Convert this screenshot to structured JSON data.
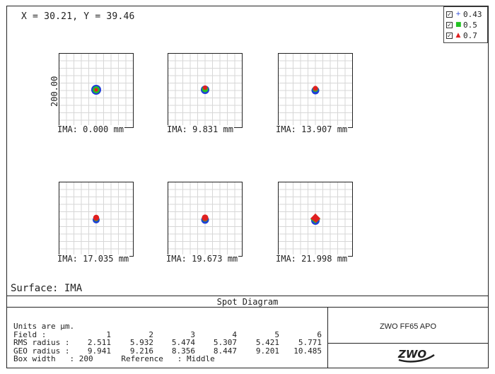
{
  "cursor": {
    "text": "X = 30.21, Y = 39.46"
  },
  "legend": {
    "items": [
      {
        "value": "0.43",
        "color": "#1f3fd6",
        "symbol": "+",
        "checked": true
      },
      {
        "value": "0.5",
        "color": "#22c322",
        "symbol": "■",
        "checked": true
      },
      {
        "value": "0.7",
        "color": "#e02020",
        "symbol": "▲",
        "checked": true
      }
    ]
  },
  "scale_label": "200.00",
  "fields": [
    {
      "label": "IMA: 0.000 mm"
    },
    {
      "label": "IMA: 9.831 mm"
    },
    {
      "label": "IMA: 13.907 mm"
    },
    {
      "label": "IMA: 17.035 mm"
    },
    {
      "label": "IMA: 19.673 mm"
    },
    {
      "label": "IMA: 21.998 mm"
    }
  ],
  "surface": "Surface: IMA",
  "title": "Spot Diagram",
  "info": {
    "units": "Units are µm.",
    "field_label": "Field        :",
    "field_values": [
      "1",
      "2",
      "3",
      "4",
      "5",
      "6"
    ],
    "rms_label": "RMS radius :",
    "rms_values": [
      "2.511",
      "5.932",
      "5.474",
      "5.307",
      "5.421",
      "5.771"
    ],
    "geo_label": "GEO radius :",
    "geo_values": [
      "9.941",
      "9.216",
      "8.356",
      "8.447",
      "9.201",
      "10.485"
    ],
    "box_line": "Box width   : 200      Reference   : Middle"
  },
  "system_name": "ZWO FF65 APO",
  "logo_text": "ZWO"
}
